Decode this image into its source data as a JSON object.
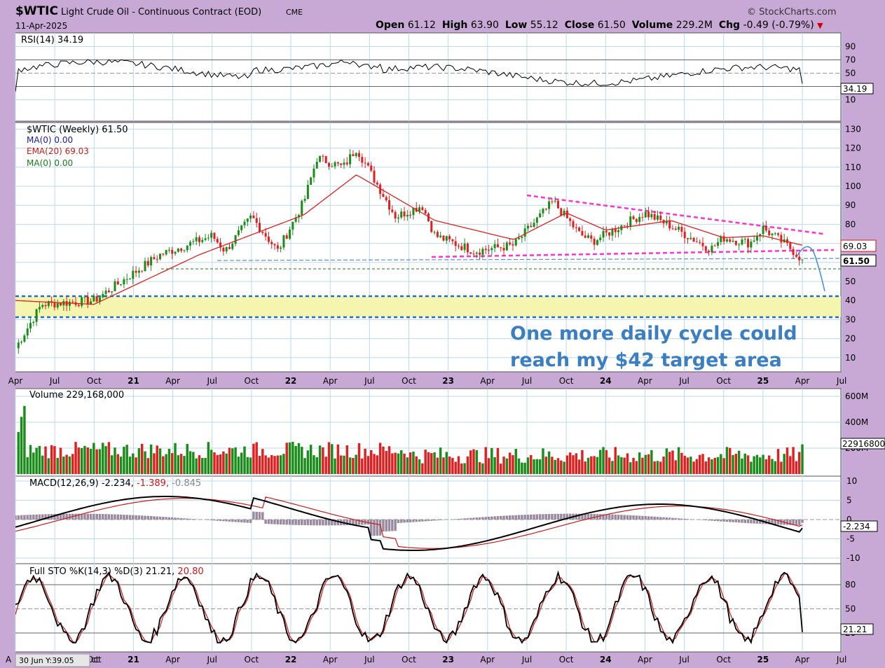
{
  "header": {
    "symbol": "$WTIC",
    "title": "Light Crude Oil - Continuous Contract (EOD)",
    "exchange": "CME",
    "date": "11-Apr-2025",
    "brand": "StockCharts.com",
    "ohlc": {
      "open_label": "Open",
      "open": "61.12",
      "high_label": "High",
      "high": "63.90",
      "low_label": "Low",
      "low": "55.12",
      "close_label": "Close",
      "close": "61.50",
      "volume_label": "Volume",
      "volume": "229.2M",
      "chg_label": "Chg",
      "chg": "-0.49 (-0.79%)"
    }
  },
  "panels": {
    "rsi": {
      "label": "RSI(14) 34.19",
      "value_tag": "34.19",
      "ticks": [
        "90",
        "70",
        "50",
        "30",
        "10"
      ]
    },
    "price": {
      "label": "$WTIC (Weekly) 61.50",
      "ma1": "MA(0) 0.00",
      "ema": "EMA(20) 69.03",
      "ma2": "MA(0) 0.00",
      "ema_tag": "69.03",
      "close_tag": "61.50",
      "ticks": [
        "130",
        "120",
        "110",
        "100",
        "90",
        "80",
        "70",
        "60",
        "50",
        "40",
        "30",
        "20",
        "10"
      ],
      "annotation_line1": "One more daily cycle could",
      "annotation_line2": "reach my $42 target area"
    },
    "volume": {
      "label": "Volume 229,168,000",
      "value_tag": "229168000",
      "ticks": [
        "600M",
        "400M",
        "200M"
      ]
    },
    "macd": {
      "label": "MACD(12,26,9) -2.234,",
      "signal": "-1.389,",
      "hist": "-0.845",
      "value_tag": "-2.234",
      "ticks": [
        "10",
        "5",
        "0",
        "-5",
        "-10"
      ]
    },
    "sto": {
      "label": "Full STO %K(14,3) %D(3) 21.21,",
      "d_value": "20.80",
      "value_tag": "21.21",
      "ticks": [
        "80",
        "50",
        "20"
      ]
    }
  },
  "xaxis": {
    "labels": [
      "Apr",
      "Jul",
      "Oct",
      "21",
      "Apr",
      "Jul",
      "Oct",
      "22",
      "Apr",
      "Jul",
      "Oct",
      "23",
      "Apr",
      "Jul",
      "Oct",
      "24",
      "Apr",
      "Jul",
      "Oct",
      "25",
      "Apr",
      "Jul"
    ],
    "bottom_first": "A",
    "bottom_second": "ct"
  },
  "tooltip": "30 Jun Y:39.05",
  "colors": {
    "background": "#c8a9d6",
    "panel": "#ffffff",
    "up_bar": "#1a8c1a",
    "down_bar": "#e02020",
    "ema": "#e02020",
    "trendline": "#ff33cc",
    "support": "#1a6fd0",
    "target_zone": "#f6f5b0",
    "annotation": "#3b7ec2"
  },
  "chart_data": {
    "type": "line",
    "title": "$WTIC Light Crude Oil - Continuous Contract (EOD)",
    "x_range": [
      "2020-04",
      "2025-04"
    ],
    "price": {
      "ylim": [
        0,
        135
      ],
      "series": [
        {
          "name": "$WTIC (Weekly)",
          "x": [
            "2020-04",
            "2020-06",
            "2020-10",
            "2021-03",
            "2021-07",
            "2021-08",
            "2021-10",
            "2021-12",
            "2022-02",
            "2022-03",
            "2022-05",
            "2022-06",
            "2022-09",
            "2022-11",
            "2022-12",
            "2023-03",
            "2023-06",
            "2023-09",
            "2023-11",
            "2023-12",
            "2024-04",
            "2024-06",
            "2024-09",
            "2024-10",
            "2024-12",
            "2025-01",
            "2025-03",
            "2025-04"
          ],
          "values": [
            15,
            38,
            40,
            64,
            74,
            66,
            84,
            66,
            92,
            115,
            110,
            120,
            84,
            90,
            74,
            66,
            69,
            92,
            75,
            71,
            86,
            79,
            67,
            73,
            70,
            78,
            68,
            61.5
          ]
        },
        {
          "name": "EMA(20)",
          "x": [
            "2020-04",
            "2020-10",
            "2021-06",
            "2022-02",
            "2022-06",
            "2022-12",
            "2023-06",
            "2023-10",
            "2024-01",
            "2024-06",
            "2024-10",
            "2025-01",
            "2025-04"
          ],
          "values": [
            40,
            38,
            64,
            85,
            106,
            82,
            72,
            86,
            77,
            82,
            73,
            74,
            69.03
          ]
        }
      ],
      "annotations": {
        "target_area": [
          32,
          43
        ],
        "support_dashed": [
          60,
          56.5
        ]
      }
    },
    "rsi": {
      "ylim": [
        0,
        100
      ],
      "last": 34.19
    },
    "volume": {
      "last": 229168000,
      "ticks": [
        "200M",
        "400M",
        "600M"
      ]
    },
    "macd": {
      "macd": -2.234,
      "signal": -1.389,
      "histogram": -0.845
    },
    "stochastic": {
      "k": 21.21,
      "d": 20.8
    }
  }
}
